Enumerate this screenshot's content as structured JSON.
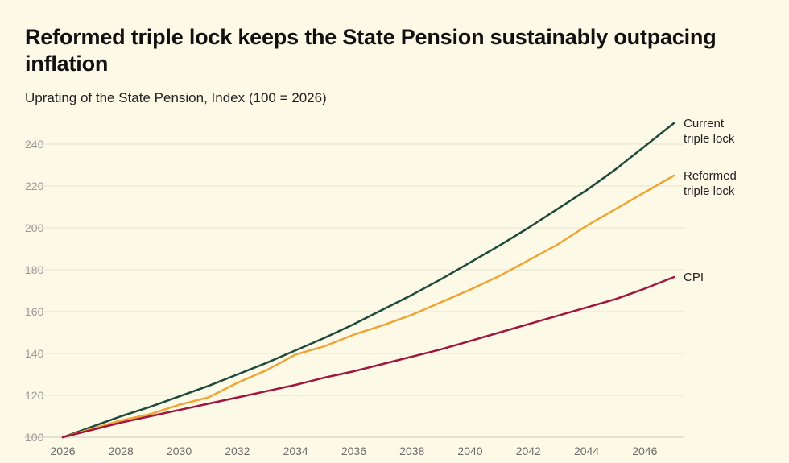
{
  "chart_data": {
    "type": "line",
    "title": "Reformed triple lock keeps the State Pension sustainably outpacing inflation",
    "subtitle": "Uprating of the State Pension, Index (100 = 2026)",
    "xlabel": "",
    "ylabel": "",
    "xlim": [
      2026,
      2047
    ],
    "ylim": [
      100,
      250
    ],
    "yticks": [
      100,
      120,
      140,
      160,
      180,
      200,
      220,
      240
    ],
    "xticks": [
      2026,
      2028,
      2030,
      2032,
      2034,
      2036,
      2038,
      2040,
      2042,
      2044,
      2046
    ],
    "grid": true,
    "series": [
      {
        "name": "Current triple lock",
        "label_lines": [
          "Current",
          "triple lock"
        ],
        "color": "#1e4a3d",
        "x": [
          2026,
          2027,
          2028,
          2029,
          2030,
          2031,
          2032,
          2033,
          2034,
          2035,
          2036,
          2037,
          2038,
          2039,
          2040,
          2041,
          2042,
          2043,
          2044,
          2045,
          2046,
          2047
        ],
        "values": [
          100,
          105,
          110,
          114.5,
          119.5,
          124.5,
          130,
          135.5,
          141.5,
          147.5,
          154,
          161,
          168,
          175.5,
          183.5,
          191.5,
          200,
          209,
          218,
          228,
          239,
          250
        ]
      },
      {
        "name": "Reformed triple lock",
        "label_lines": [
          "Reformed",
          "triple lock"
        ],
        "color": "#eea535",
        "x": [
          2026,
          2027,
          2028,
          2029,
          2030,
          2031,
          2032,
          2033,
          2034,
          2035,
          2036,
          2037,
          2038,
          2039,
          2040,
          2041,
          2042,
          2043,
          2044,
          2045,
          2046,
          2047
        ],
        "values": [
          100,
          104,
          108,
          111,
          115.5,
          119,
          126,
          132,
          139.5,
          143.5,
          149,
          153.5,
          158.5,
          164.5,
          170.5,
          177,
          184.5,
          192,
          201,
          209,
          217,
          225
        ]
      },
      {
        "name": "CPI",
        "label_lines": [
          "CPI"
        ],
        "color": "#a0163f",
        "x": [
          2026,
          2027,
          2028,
          2029,
          2030,
          2031,
          2032,
          2033,
          2034,
          2035,
          2036,
          2037,
          2038,
          2039,
          2040,
          2041,
          2042,
          2043,
          2044,
          2045,
          2046,
          2047
        ],
        "values": [
          100,
          103.5,
          107,
          110,
          113,
          116,
          119,
          122,
          125,
          128.5,
          131.5,
          135,
          138.5,
          142,
          146,
          150,
          154,
          158,
          162,
          166,
          171,
          176.5
        ]
      }
    ]
  }
}
